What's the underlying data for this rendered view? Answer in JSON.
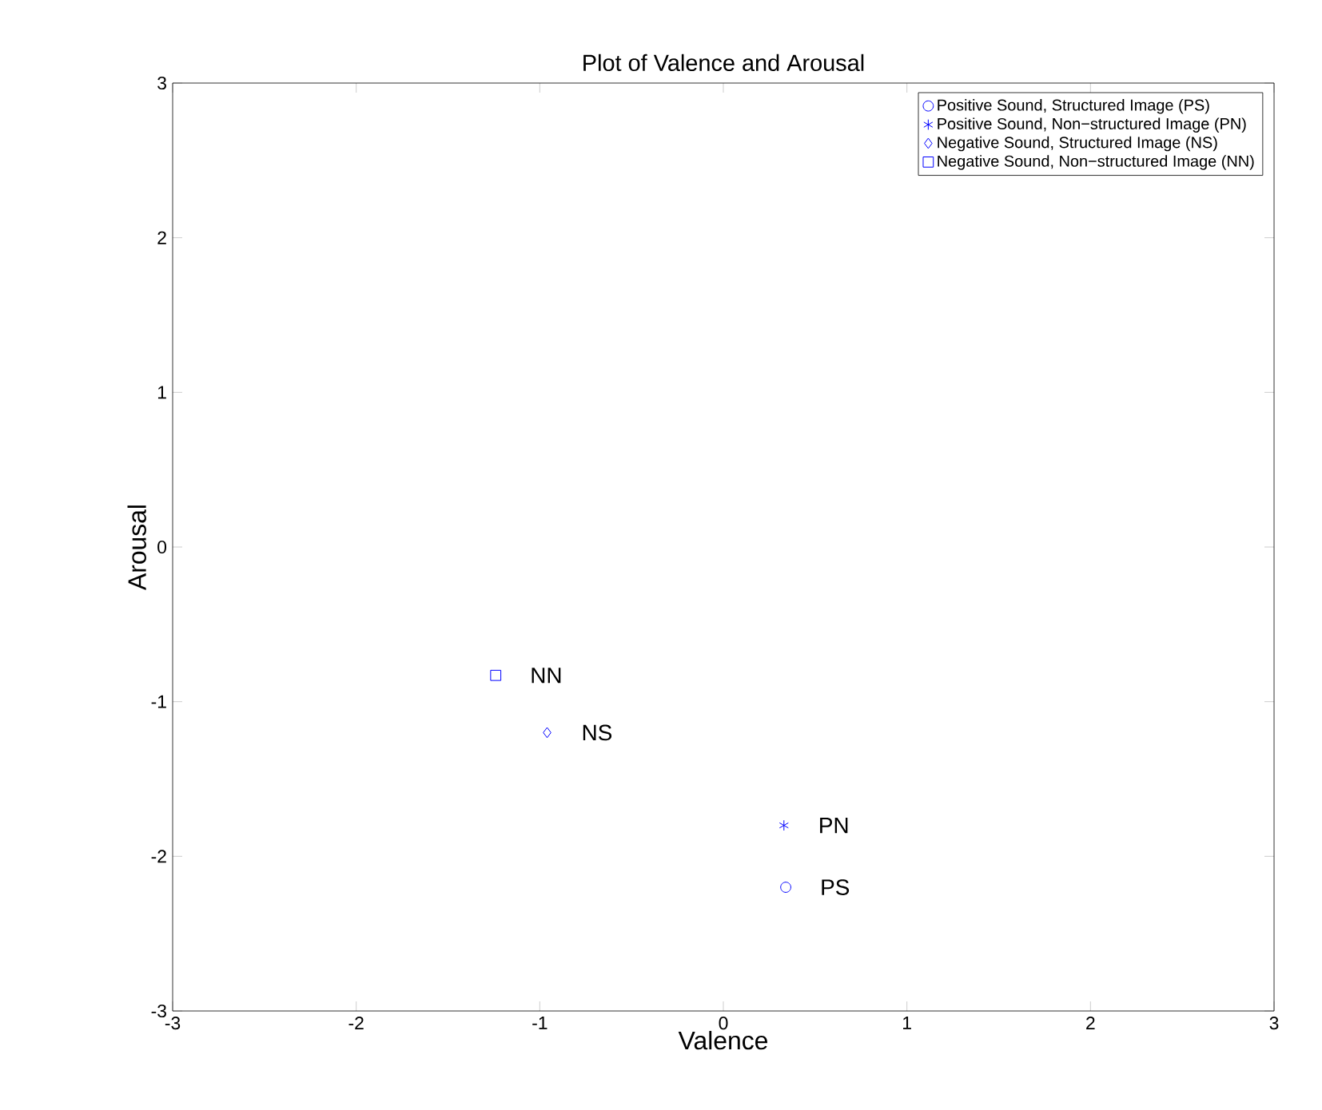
{
  "chart_data": {
    "type": "scatter",
    "title": "Plot of Valence and Arousal",
    "xlabel": "Valence",
    "ylabel": "Arousal",
    "xlim": [
      -3,
      3
    ],
    "ylim": [
      -3,
      3
    ],
    "xticks": [
      -3,
      -2,
      -1,
      0,
      1,
      2,
      3
    ],
    "yticks": [
      -3,
      -2,
      -1,
      0,
      1,
      2,
      3
    ],
    "legend": "top right",
    "series": [
      {
        "name": "Positive Sound, Structured Image (PS)",
        "color": "#0000ff",
        "marker": "circle",
        "x": [
          0.34
        ],
        "values": [
          -2.2
        ]
      },
      {
        "name": "Positive Sound, Non−structured Image (PN)",
        "color": "#0000ff",
        "marker": "cross",
        "x": [
          0.33
        ],
        "values": [
          -1.8
        ]
      },
      {
        "name": "Negative Sound, Structured Image (NS)",
        "color": "#0000ff",
        "marker": "diamond",
        "x": [
          -0.96
        ],
        "values": [
          -1.2
        ]
      },
      {
        "name": "Negative Sound, Non−structured Image (NN)",
        "color": "#0000ff",
        "marker": "square",
        "x": [
          -1.24
        ],
        "values": [
          -0.83
        ]
      }
    ],
    "annotations": [
      {
        "text": "PS",
        "x": 0.34,
        "y": -2.2
      },
      {
        "text": "PN",
        "x": 0.33,
        "y": -1.8
      },
      {
        "text": "NS",
        "x": -0.96,
        "y": -1.2
      },
      {
        "text": "NN",
        "x": -1.24,
        "y": -0.83
      }
    ]
  }
}
